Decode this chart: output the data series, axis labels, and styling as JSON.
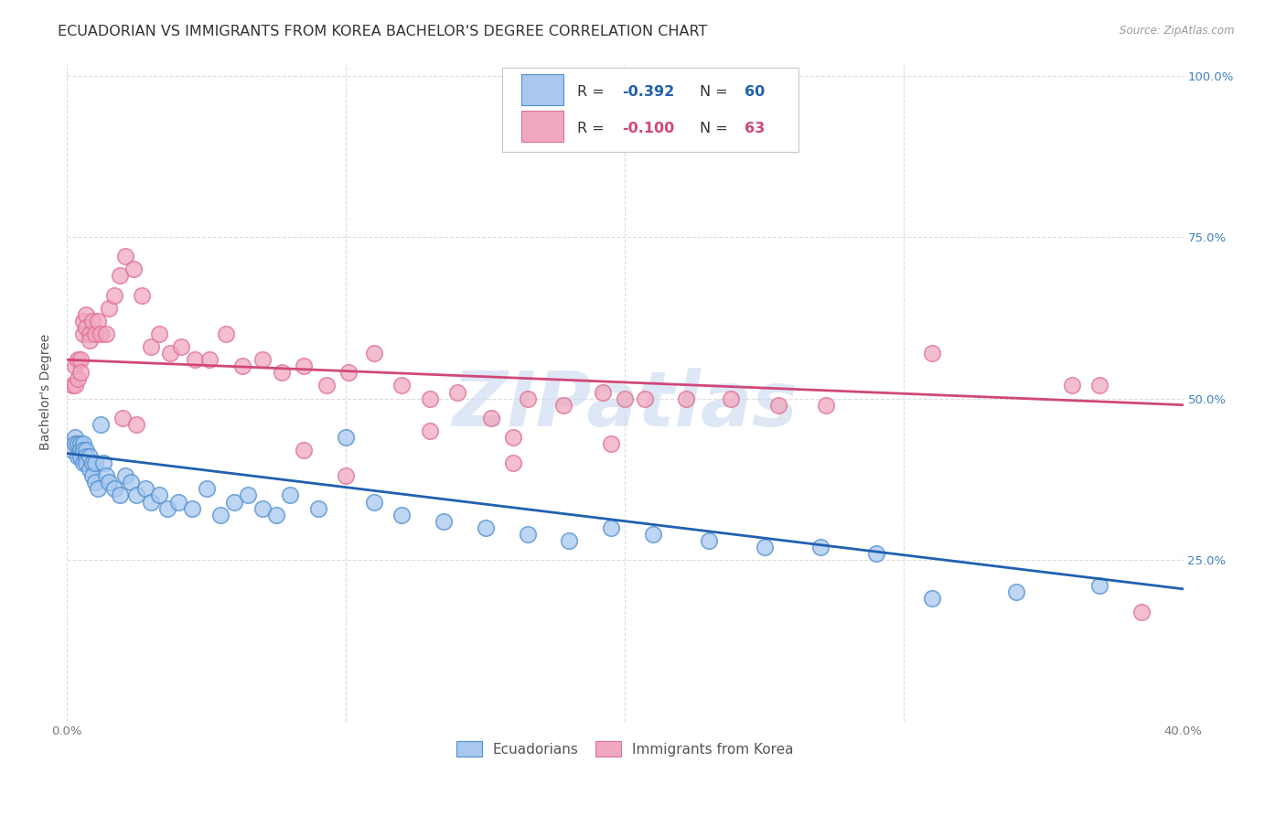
{
  "title": "ECUADORIAN VS IMMIGRANTS FROM KOREA BACHELOR'S DEGREE CORRELATION CHART",
  "source": "Source: ZipAtlas.com",
  "ylabel": "Bachelor's Degree",
  "legend_r1": "-0.392",
  "legend_n1": "60",
  "legend_r2": "-0.100",
  "legend_n2": "63",
  "color_blue": "#A8C8F0",
  "color_pink": "#F0A8C0",
  "color_blue_line": "#2060B0",
  "color_pink_line": "#D04878",
  "color_blue_dark": "#5090D0",
  "color_pink_dark": "#E07090",
  "watermark": "ZIPatlas",
  "ecuadorians_x": [
    0.002,
    0.003,
    0.003,
    0.004,
    0.004,
    0.005,
    0.005,
    0.005,
    0.006,
    0.006,
    0.006,
    0.007,
    0.007,
    0.007,
    0.008,
    0.008,
    0.009,
    0.009,
    0.01,
    0.01,
    0.011,
    0.012,
    0.013,
    0.014,
    0.015,
    0.017,
    0.019,
    0.021,
    0.023,
    0.025,
    0.028,
    0.03,
    0.033,
    0.036,
    0.04,
    0.045,
    0.05,
    0.055,
    0.06,
    0.065,
    0.07,
    0.075,
    0.08,
    0.09,
    0.1,
    0.11,
    0.12,
    0.135,
    0.15,
    0.165,
    0.18,
    0.195,
    0.21,
    0.23,
    0.25,
    0.27,
    0.29,
    0.31,
    0.34,
    0.37
  ],
  "ecuadorians_y": [
    0.42,
    0.44,
    0.43,
    0.43,
    0.41,
    0.43,
    0.42,
    0.41,
    0.43,
    0.42,
    0.4,
    0.42,
    0.41,
    0.4,
    0.41,
    0.39,
    0.4,
    0.38,
    0.4,
    0.37,
    0.36,
    0.46,
    0.4,
    0.38,
    0.37,
    0.36,
    0.35,
    0.38,
    0.37,
    0.35,
    0.36,
    0.34,
    0.35,
    0.33,
    0.34,
    0.33,
    0.36,
    0.32,
    0.34,
    0.35,
    0.33,
    0.32,
    0.35,
    0.33,
    0.44,
    0.34,
    0.32,
    0.31,
    0.3,
    0.29,
    0.28,
    0.3,
    0.29,
    0.28,
    0.27,
    0.27,
    0.26,
    0.19,
    0.2,
    0.21
  ],
  "korea_x": [
    0.002,
    0.003,
    0.003,
    0.004,
    0.004,
    0.005,
    0.005,
    0.006,
    0.006,
    0.007,
    0.007,
    0.008,
    0.008,
    0.009,
    0.01,
    0.011,
    0.012,
    0.014,
    0.015,
    0.017,
    0.019,
    0.021,
    0.024,
    0.027,
    0.03,
    0.033,
    0.037,
    0.041,
    0.046,
    0.051,
    0.057,
    0.063,
    0.07,
    0.077,
    0.085,
    0.093,
    0.101,
    0.11,
    0.12,
    0.13,
    0.14,
    0.152,
    0.165,
    0.178,
    0.192,
    0.207,
    0.222,
    0.238,
    0.255,
    0.272,
    0.02,
    0.025,
    0.085,
    0.16,
    0.31,
    0.37,
    0.385,
    0.1,
    0.13,
    0.16,
    0.195,
    0.2,
    0.36
  ],
  "korea_y": [
    0.52,
    0.55,
    0.52,
    0.56,
    0.53,
    0.56,
    0.54,
    0.62,
    0.6,
    0.63,
    0.61,
    0.6,
    0.59,
    0.62,
    0.6,
    0.62,
    0.6,
    0.6,
    0.64,
    0.66,
    0.69,
    0.72,
    0.7,
    0.66,
    0.58,
    0.6,
    0.57,
    0.58,
    0.56,
    0.56,
    0.6,
    0.55,
    0.56,
    0.54,
    0.55,
    0.52,
    0.54,
    0.57,
    0.52,
    0.5,
    0.51,
    0.47,
    0.5,
    0.49,
    0.51,
    0.5,
    0.5,
    0.5,
    0.49,
    0.49,
    0.47,
    0.46,
    0.42,
    0.44,
    0.57,
    0.52,
    0.17,
    0.38,
    0.45,
    0.4,
    0.43,
    0.5,
    0.52
  ],
  "ecu_line_x": [
    0.0,
    0.4
  ],
  "ecu_line_y": [
    0.415,
    0.205
  ],
  "korea_line_x": [
    0.0,
    0.4
  ],
  "korea_line_y": [
    0.56,
    0.49
  ],
  "xlim": [
    0.0,
    0.4
  ],
  "ylim": [
    0.0,
    1.02
  ],
  "background_color": "#FFFFFF",
  "grid_color": "#DDDDDD",
  "title_fontsize": 11.5,
  "axis_label_fontsize": 10,
  "tick_fontsize": 9.5,
  "watermark_color": "#C8D8F0",
  "right_tick_color": "#4080C0"
}
